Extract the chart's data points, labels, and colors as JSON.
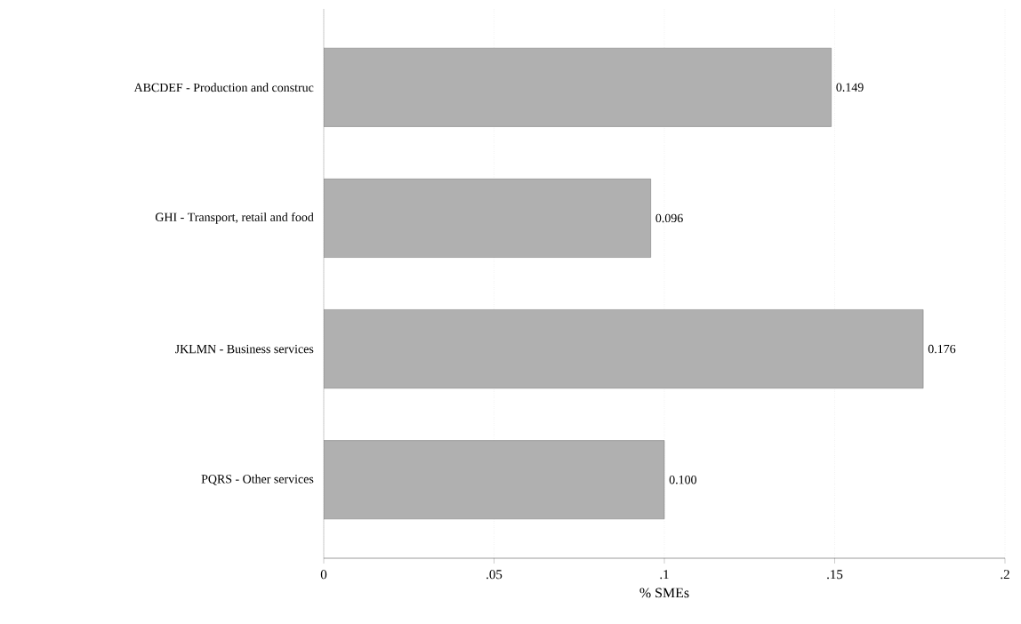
{
  "chart_data": {
    "type": "bar",
    "orientation": "horizontal",
    "categories": [
      "ABCDEF - Production and construc",
      "GHI - Transport, retail and food",
      "JKLMN - Business services",
      "PQRS - Other services"
    ],
    "values": [
      0.149,
      0.096,
      0.176,
      0.1
    ],
    "value_labels": [
      "0.149",
      "0.096",
      "0.176",
      "0.100"
    ],
    "color": "#b0b0b0",
    "xlabel": "% SMEs",
    "xlim": [
      0,
      0.2
    ],
    "xticks": [
      0,
      {
        "value": 0.05,
        "label": ".05"
      },
      {
        "value": 0.1,
        "label": ".1"
      },
      {
        "value": 0.15,
        "label": ".15"
      },
      {
        "value": 0.2,
        "label": ".2"
      }
    ],
    "grid": "x"
  }
}
